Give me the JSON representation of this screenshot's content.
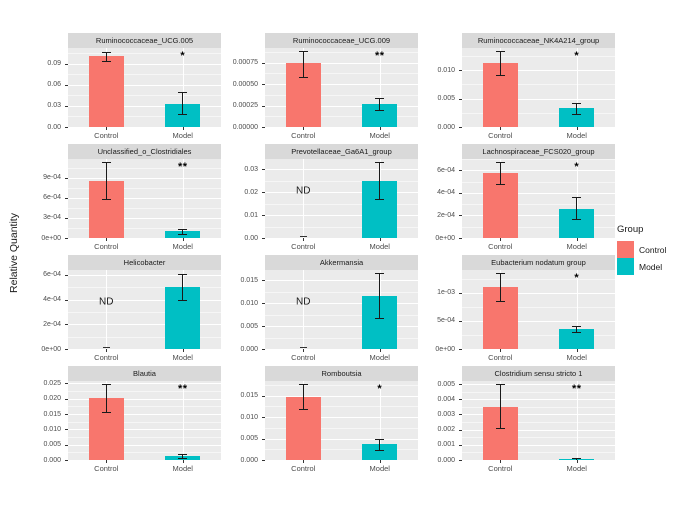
{
  "figure": {
    "ylabel": "Relative Quantity",
    "categories": [
      "Control",
      "Model"
    ],
    "colors": {
      "panel_bg": "#EBEBEB",
      "strip_bg": "#D9D9D9",
      "grid": "#FFFFFF",
      "axis_text": "#4D4D4D",
      "control": "#F8766D",
      "model": "#00BFC4"
    },
    "legend": {
      "title": "Group",
      "items": [
        {
          "label": "Control",
          "color": "#F8766D"
        },
        {
          "label": "Model",
          "color": "#00BFC4"
        }
      ]
    }
  },
  "chart_data": [
    {
      "type": "bar",
      "title": "Ruminococcaceae_UCG.005",
      "significance": "*",
      "nd_label": null,
      "ymax": 0.112,
      "yticks": [
        {
          "value": 0,
          "label": "0.00"
        },
        {
          "value": 0.03,
          "label": "0.03"
        },
        {
          "value": 0.06,
          "label": "0.06"
        },
        {
          "value": 0.09,
          "label": "0.09"
        }
      ],
      "series": [
        {
          "name": "Control",
          "value": 0.1,
          "err_lo": 0.093,
          "err_hi": 0.106
        },
        {
          "name": "Model",
          "value": 0.033,
          "err_lo": 0.018,
          "err_hi": 0.05
        }
      ]
    },
    {
      "type": "bar",
      "title": "Ruminococcaceae_UCG.009",
      "significance": "**",
      "nd_label": null,
      "ymax": 0.00092,
      "yticks": [
        {
          "value": 0,
          "label": "0.00000"
        },
        {
          "value": 0.00025,
          "label": "0.00025"
        },
        {
          "value": 0.0005,
          "label": "0.00050"
        },
        {
          "value": 0.00075,
          "label": "0.00075"
        }
      ],
      "series": [
        {
          "name": "Control",
          "value": 0.00074,
          "err_lo": 0.00058,
          "err_hi": 0.00088
        },
        {
          "name": "Model",
          "value": 0.00027,
          "err_lo": 0.0002,
          "err_hi": 0.00034
        }
      ]
    },
    {
      "type": "bar",
      "title": "Ruminococcaceae_NK4A214_group",
      "significance": "*",
      "nd_label": null,
      "ymax": 0.0139,
      "yticks": [
        {
          "value": 0,
          "label": "0.000"
        },
        {
          "value": 0.005,
          "label": "0.005"
        },
        {
          "value": 0.01,
          "label": "0.010"
        }
      ],
      "series": [
        {
          "name": "Control",
          "value": 0.0113,
          "err_lo": 0.0092,
          "err_hi": 0.0133
        },
        {
          "name": "Model",
          "value": 0.0033,
          "err_lo": 0.0022,
          "err_hi": 0.0043
        }
      ]
    },
    {
      "type": "bar",
      "title": "Unclassified_o_Clostridiales",
      "significance": "**",
      "nd_label": null,
      "ymax": 0.00118,
      "yticks": [
        {
          "value": 0,
          "label": "0e+00"
        },
        {
          "value": 0.0003,
          "label": "3e-04"
        },
        {
          "value": 0.0006,
          "label": "6e-04"
        },
        {
          "value": 0.0009,
          "label": "9e-04"
        }
      ],
      "series": [
        {
          "name": "Control",
          "value": 0.00085,
          "err_lo": 0.00058,
          "err_hi": 0.00113
        },
        {
          "name": "Model",
          "value": 0.0001,
          "err_lo": 6e-05,
          "err_hi": 0.00014
        }
      ]
    },
    {
      "type": "bar",
      "title": "Prevotellaceae_Ga6A1_group",
      "significance": "",
      "nd_label": "ND",
      "ymax": 0.0345,
      "yticks": [
        {
          "value": 0,
          "label": "0.00"
        },
        {
          "value": 0.01,
          "label": "0.01"
        },
        {
          "value": 0.02,
          "label": "0.02"
        },
        {
          "value": 0.03,
          "label": "0.03"
        }
      ],
      "series": [
        {
          "name": "Control",
          "value": 0,
          "err_lo": null,
          "err_hi": null
        },
        {
          "name": "Model",
          "value": 0.025,
          "err_lo": 0.017,
          "err_hi": 0.033
        }
      ]
    },
    {
      "type": "bar",
      "title": "Lachnospiraceae_FCS020_group",
      "significance": "*",
      "nd_label": null,
      "ymax": 0.0007,
      "yticks": [
        {
          "value": 0,
          "label": "0e+00"
        },
        {
          "value": 0.0002,
          "label": "2e-04"
        },
        {
          "value": 0.0004,
          "label": "4e-04"
        },
        {
          "value": 0.0006,
          "label": "6e-04"
        }
      ],
      "series": [
        {
          "name": "Control",
          "value": 0.00058,
          "err_lo": 0.00048,
          "err_hi": 0.00067
        },
        {
          "name": "Model",
          "value": 0.00026,
          "err_lo": 0.00017,
          "err_hi": 0.00036
        }
      ]
    },
    {
      "type": "bar",
      "title": "Helicobacter",
      "significance": "",
      "nd_label": "ND",
      "ymax": 0.00064,
      "yticks": [
        {
          "value": 0,
          "label": "0e+00"
        },
        {
          "value": 0.0002,
          "label": "2e-04"
        },
        {
          "value": 0.0004,
          "label": "4e-04"
        },
        {
          "value": 0.0006,
          "label": "6e-04"
        }
      ],
      "series": [
        {
          "name": "Control",
          "value": 0,
          "err_lo": null,
          "err_hi": null
        },
        {
          "name": "Model",
          "value": 0.0005,
          "err_lo": 0.0004,
          "err_hi": 0.00061
        }
      ]
    },
    {
      "type": "bar",
      "title": "Akkermansia",
      "significance": "",
      "nd_label": "ND",
      "ymax": 0.0172,
      "yticks": [
        {
          "value": 0,
          "label": "0.000"
        },
        {
          "value": 0.005,
          "label": "0.005"
        },
        {
          "value": 0.01,
          "label": "0.010"
        },
        {
          "value": 0.015,
          "label": "0.015"
        }
      ],
      "series": [
        {
          "name": "Control",
          "value": 0,
          "err_lo": null,
          "err_hi": null
        },
        {
          "name": "Model",
          "value": 0.0115,
          "err_lo": 0.0067,
          "err_hi": 0.0165
        }
      ]
    },
    {
      "type": "bar",
      "title": "Eubacterium nodatum group",
      "significance": "*",
      "nd_label": null,
      "ymax": 0.00141,
      "yticks": [
        {
          "value": 0,
          "label": "0e+00"
        },
        {
          "value": 0.0005,
          "label": "5e-04"
        },
        {
          "value": 0.001,
          "label": "1e-03"
        }
      ],
      "series": [
        {
          "name": "Control",
          "value": 0.0011,
          "err_lo": 0.00085,
          "err_hi": 0.00135
        },
        {
          "name": "Model",
          "value": 0.00035,
          "err_lo": 0.0003,
          "err_hi": 0.00041
        }
      ]
    },
    {
      "type": "bar",
      "title": "Blautia",
      "significance": "**",
      "nd_label": null,
      "ymax": 0.0258,
      "yticks": [
        {
          "value": 0,
          "label": "0.000"
        },
        {
          "value": 0.005,
          "label": "0.005"
        },
        {
          "value": 0.01,
          "label": "0.010"
        },
        {
          "value": 0.015,
          "label": "0.015"
        },
        {
          "value": 0.02,
          "label": "0.020"
        },
        {
          "value": 0.025,
          "label": "0.025"
        }
      ],
      "series": [
        {
          "name": "Control",
          "value": 0.0202,
          "err_lo": 0.0157,
          "err_hi": 0.0247
        },
        {
          "name": "Model",
          "value": 0.0012,
          "err_lo": 0.0007,
          "err_hi": 0.0018
        }
      ]
    },
    {
      "type": "bar",
      "title": "Romboutsia",
      "significance": "*",
      "nd_label": null,
      "ymax": 0.0184,
      "yticks": [
        {
          "value": 0,
          "label": "0.000"
        },
        {
          "value": 0.005,
          "label": "0.005"
        },
        {
          "value": 0.01,
          "label": "0.010"
        },
        {
          "value": 0.015,
          "label": "0.015"
        }
      ],
      "series": [
        {
          "name": "Control",
          "value": 0.0147,
          "err_lo": 0.0118,
          "err_hi": 0.0176
        },
        {
          "name": "Model",
          "value": 0.0038,
          "err_lo": 0.0024,
          "err_hi": 0.005
        }
      ]
    },
    {
      "type": "bar",
      "title": "Clostridium sensu stricto 1",
      "significance": "**",
      "nd_label": null,
      "ymax": 0.0052,
      "yticks": [
        {
          "value": 0,
          "label": "0.000"
        },
        {
          "value": 0.001,
          "label": "0.001"
        },
        {
          "value": 0.002,
          "label": "0.002"
        },
        {
          "value": 0.003,
          "label": "0.003"
        },
        {
          "value": 0.004,
          "label": "0.004"
        },
        {
          "value": 0.005,
          "label": "0.005"
        }
      ],
      "series": [
        {
          "name": "Control",
          "value": 0.0035,
          "err_lo": 0.0021,
          "err_hi": 0.005
        },
        {
          "name": "Model",
          "value": 5e-05,
          "err_lo": 2e-05,
          "err_hi": 0.0001
        }
      ]
    }
  ]
}
